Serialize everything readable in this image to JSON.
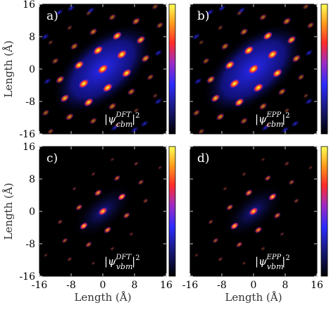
{
  "chart_data": {
    "type": "heatmap",
    "colormap": [
      "#000000",
      "#1a1a6e",
      "#2a2aff",
      "#9b2bc8",
      "#ff2a2a",
      "#ff8c1a",
      "#ffff4a"
    ],
    "xlabel": "Length (Å)",
    "ylabel": "Length (Å)",
    "xlim": [
      -16,
      16
    ],
    "ylim": [
      -16,
      16
    ],
    "xticks": [
      "-16",
      "-8",
      "0",
      "8",
      "16"
    ],
    "yticks": [
      "16",
      "8",
      "0",
      "-8",
      "-16"
    ],
    "panels": [
      {
        "label": "a)",
        "state": "cbm",
        "method": "DFT",
        "legend": [
          "|ψ",
          "cbm",
          "DFT",
          "|",
          "2"
        ]
      },
      {
        "label": "b)",
        "state": "cbm",
        "method": "EPP",
        "legend": [
          "|ψ",
          "cbm",
          "EPP",
          "|",
          "2"
        ]
      },
      {
        "label": "c)",
        "state": "vbm",
        "method": "DFT",
        "legend": [
          "|ψ",
          "vbm",
          "DFT",
          "|",
          "2"
        ]
      },
      {
        "label": "d)",
        "state": "vbm",
        "method": "EPP",
        "legend": [
          "|ψ",
          "vbm",
          "EPP",
          "|",
          "2"
        ]
      }
    ]
  }
}
